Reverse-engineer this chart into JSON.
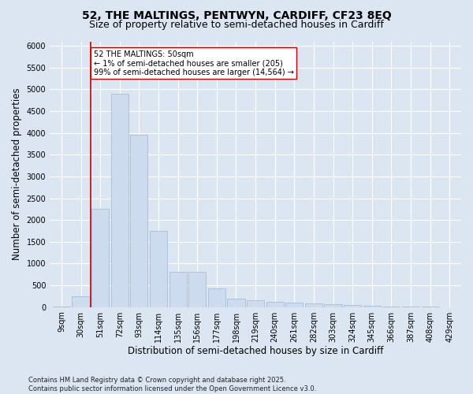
{
  "title_line1": "52, THE MALTINGS, PENTWYN, CARDIFF, CF23 8EQ",
  "title_line2": "Size of property relative to semi-detached houses in Cardiff",
  "xlabel": "Distribution of semi-detached houses by size in Cardiff",
  "ylabel": "Number of semi-detached properties",
  "categories": [
    "9sqm",
    "30sqm",
    "51sqm",
    "72sqm",
    "93sqm",
    "114sqm",
    "135sqm",
    "156sqm",
    "177sqm",
    "198sqm",
    "219sqm",
    "240sqm",
    "261sqm",
    "282sqm",
    "303sqm",
    "324sqm",
    "345sqm",
    "366sqm",
    "387sqm",
    "408sqm",
    "429sqm"
  ],
  "values": [
    20,
    250,
    2250,
    4900,
    3950,
    1750,
    800,
    800,
    420,
    200,
    150,
    120,
    100,
    80,
    60,
    40,
    35,
    20,
    10,
    5,
    2
  ],
  "bar_color": "#ccdcee",
  "bar_edge_color": "#9ab8d8",
  "vline_color": "#cc0000",
  "vline_x_index": 2,
  "annotation_text": "52 THE MALTINGS: 50sqm\n← 1% of semi-detached houses are smaller (205)\n99% of semi-detached houses are larger (14,564) →",
  "annotation_box_facecolor": "#ffffff",
  "annotation_box_edgecolor": "#cc0000",
  "ylim": [
    0,
    6100
  ],
  "yticks": [
    0,
    500,
    1000,
    1500,
    2000,
    2500,
    3000,
    3500,
    4000,
    4500,
    5000,
    5500,
    6000
  ],
  "bg_color": "#dce6f2",
  "plot_bg_color": "#dce6f2",
  "grid_color": "#ffffff",
  "footnote": "Contains HM Land Registry data © Crown copyright and database right 2025.\nContains public sector information licensed under the Open Government Licence v3.0.",
  "title_fontsize": 10,
  "subtitle_fontsize": 9,
  "axis_label_fontsize": 8.5,
  "tick_fontsize": 7,
  "annotation_fontsize": 7,
  "footnote_fontsize": 6
}
